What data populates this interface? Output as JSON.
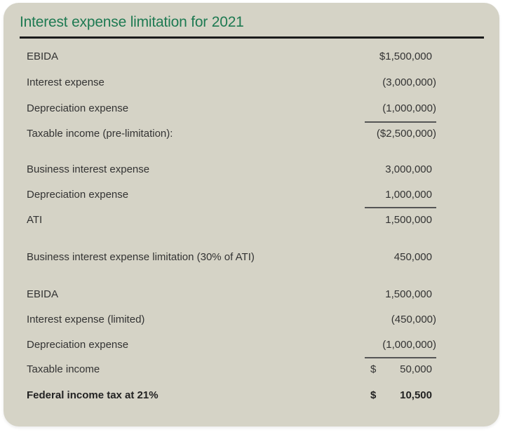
{
  "title": "Interest expense limitation for 2021",
  "colors": {
    "title": "#1e7a52",
    "background": "#d5d3c6"
  },
  "rows": [
    {
      "label": "EBIDA",
      "value": "$1,500,000"
    },
    {
      "label": "Interest expense",
      "value": "(3,000,000)"
    },
    {
      "label": "Depreciation expense",
      "value": "(1,000,000)"
    },
    {
      "label": "Taxable income (pre-limitation):",
      "value": "($2,500,000)"
    },
    {
      "label": "Business interest expense",
      "value": "3,000,000"
    },
    {
      "label": "Depreciation expense",
      "value": "1,000,000"
    },
    {
      "label": "ATI",
      "value": "1,500,000"
    },
    {
      "label": "Business interest expense limitation (30% of ATI)",
      "value": "450,000"
    },
    {
      "label": "EBIDA",
      "value": "1,500,000"
    },
    {
      "label": "Interest expense (limited)",
      "value": "(450,000)"
    },
    {
      "label": "Depreciation expense",
      "value": "(1,000,000)"
    },
    {
      "label": "Taxable income",
      "currency": "$",
      "value": "50,000"
    },
    {
      "label": "Federal income tax at 21%",
      "currency": "$",
      "value": "10,500"
    }
  ]
}
